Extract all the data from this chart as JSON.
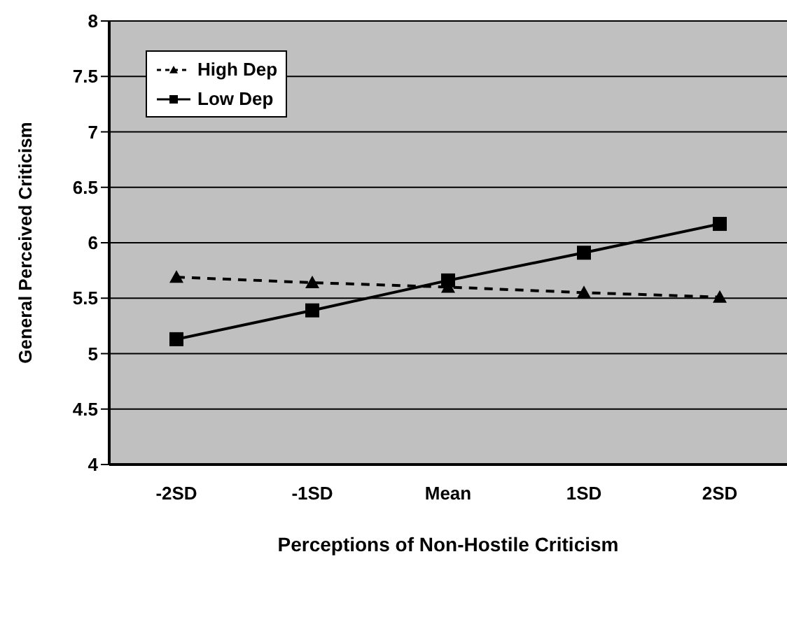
{
  "chart_data": {
    "type": "line",
    "xlabel": "Perceptions of Non-Hostile Criticism",
    "ylabel": "General Perceived Criticism",
    "categories": [
      "-2SD",
      "-1SD",
      "Mean",
      "1SD",
      "2SD"
    ],
    "series": [
      {
        "name": "High Dep",
        "color": "#000000",
        "marker": "triangle",
        "line_style": "dashed",
        "values": [
          5.69,
          5.64,
          5.6,
          5.55,
          5.51
        ]
      },
      {
        "name": "Low Dep",
        "color": "#000000",
        "marker": "square",
        "line_style": "solid",
        "values": [
          5.13,
          5.39,
          5.66,
          5.91,
          6.17
        ]
      }
    ],
    "ylim": [
      4,
      8
    ],
    "yticks": [
      4,
      4.5,
      5,
      5.5,
      6,
      6.5,
      7,
      7.5,
      8
    ],
    "grid": "y",
    "legend": "top left"
  }
}
